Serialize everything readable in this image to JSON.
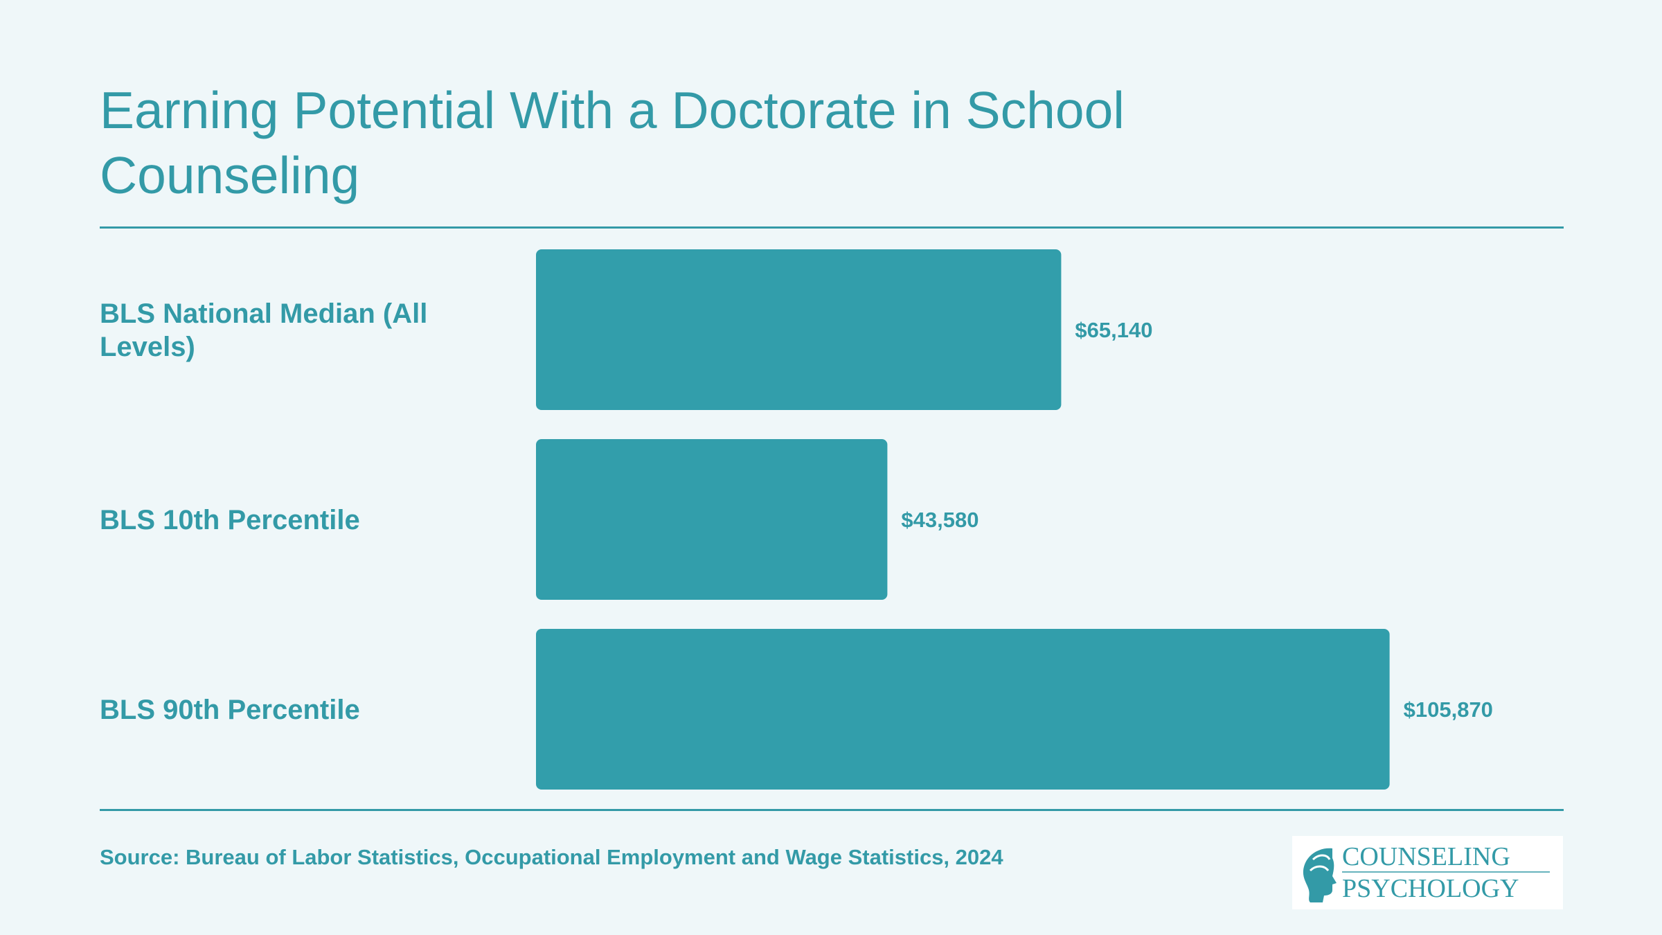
{
  "title": "Earning Potential With a Doctorate in School Counseling",
  "source": "Source: Bureau of Labor Statistics, Occupational Employment and Wage Statistics, 2024",
  "logo": {
    "line1": "COUNSELING",
    "line2": "PSYCHOLOGY",
    "icon": "head-profile-icon"
  },
  "colors": {
    "accent": "#339aa7",
    "background": "#eff7f9",
    "bar": "#329eab"
  },
  "chart_data": {
    "type": "bar",
    "orientation": "horizontal",
    "title": "Earning Potential With a Doctorate in School Counseling",
    "categories": [
      "BLS National Median (All Levels)",
      "BLS 10th Percentile",
      "BLS 90th Percentile"
    ],
    "values": [
      65140,
      43580,
      105870
    ],
    "value_labels": [
      "$65,140",
      "$43,580",
      "$105,870"
    ],
    "xlim": [
      0,
      112000
    ],
    "grid": false,
    "legend": "none"
  }
}
